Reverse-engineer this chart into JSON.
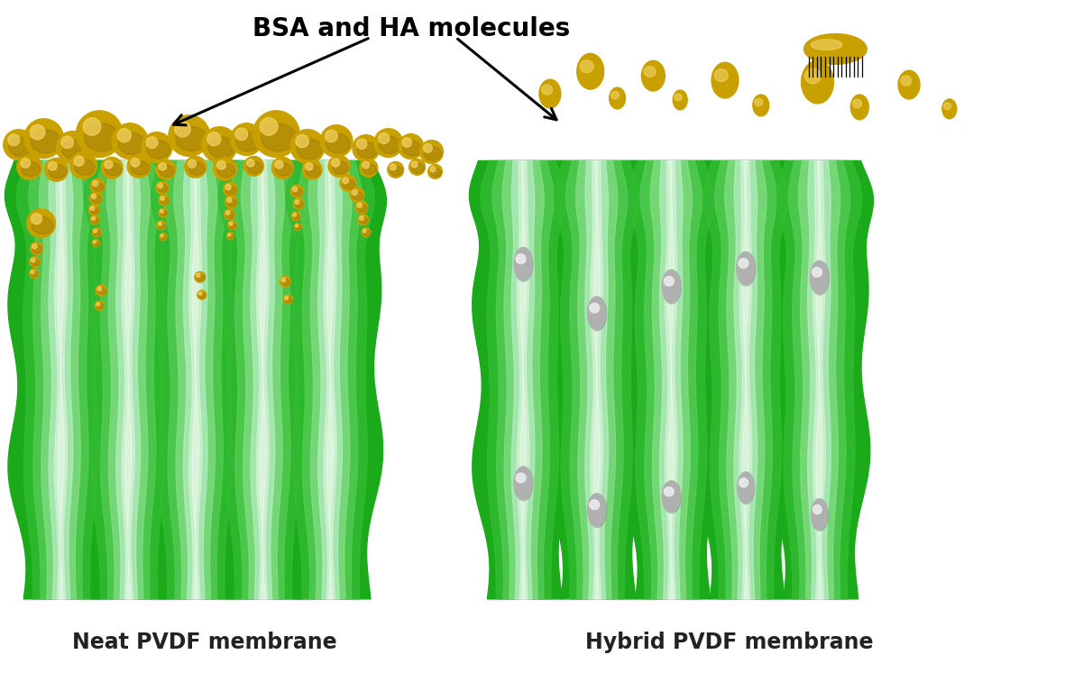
{
  "title": "BSA and HA molecules",
  "title_fontsize": 20,
  "title_fontweight": "bold",
  "label_left": "Neat PVDF membrane",
  "label_right": "Hybrid PVDF membrane",
  "label_fontsize": 17,
  "label_fontweight": "bold",
  "bg_color": "#ffffff",
  "green_dark": "#1aaa1a",
  "green_mid": "#33bb33",
  "gold_color": "#c8a000",
  "gold_highlight": "#f0d060",
  "silver_color": "#aaaaaa",
  "silver_highlight": "#e8e8e8"
}
